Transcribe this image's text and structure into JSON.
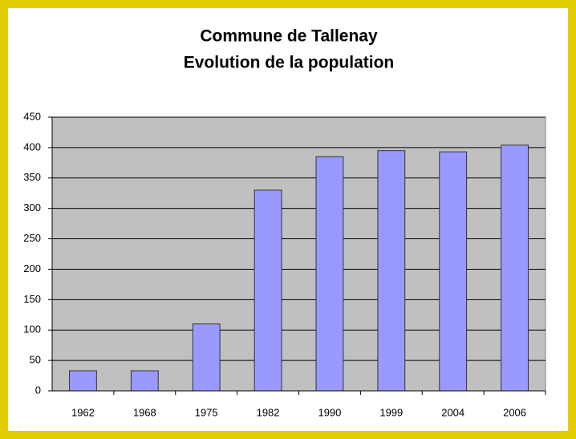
{
  "chart_data": {
    "type": "bar",
    "title": [
      "Commune de Tallenay",
      "Evolution de la population"
    ],
    "categories": [
      "1962",
      "1968",
      "1975",
      "1982",
      "1990",
      "1999",
      "2004",
      "2006"
    ],
    "values": [
      33,
      33,
      110,
      330,
      385,
      395,
      393,
      404
    ],
    "color": "#9999ff",
    "ylim": [
      0,
      450
    ],
    "yticks": [
      0,
      50,
      100,
      150,
      200,
      250,
      300,
      350,
      400,
      450
    ],
    "grid": true
  }
}
